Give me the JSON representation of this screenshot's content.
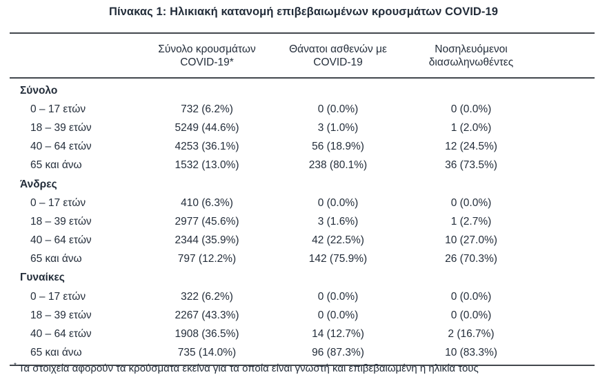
{
  "title": "Πίνακας 1: Ηλικιακή κατανομή επιβεβαιωμένων κρουσμάτων COVID-19",
  "colors": {
    "text": "#232d3a",
    "rule": "#41464c",
    "background": "#ffffff"
  },
  "table": {
    "columns": [
      {
        "line1": "Σύνολο κρουσμάτων",
        "line2": "COVID-19*"
      },
      {
        "line1": "Θάνατοι ασθενών με",
        "line2": "COVID-19"
      },
      {
        "line1": "Νοσηλευόμενοι",
        "line2": "διασωληνωθέντες"
      }
    ],
    "sections": [
      {
        "label": "Σύνολο",
        "rows": [
          {
            "label": "0 – 17 ετών",
            "cases": "732 (6.2%)",
            "deaths": "0 (0.0%)",
            "intubated": "0 (0.0%)"
          },
          {
            "label": "18 – 39 ετών",
            "cases": "5249 (44.6%)",
            "deaths": "3 (1.0%)",
            "intubated": "1 (2.0%)"
          },
          {
            "label": "40 – 64 ετών",
            "cases": "4253 (36.1%)",
            "deaths": "56 (18.9%)",
            "intubated": "12 (24.5%)"
          },
          {
            "label": "65 και άνω",
            "cases": "1532 (13.0%)",
            "deaths": "238 (80.1%)",
            "intubated": "36 (73.5%)"
          }
        ]
      },
      {
        "label": "Άνδρες",
        "rows": [
          {
            "label": "0 – 17 ετών",
            "cases": "410 (6.3%)",
            "deaths": "0 (0.0%)",
            "intubated": "0 (0.0%)"
          },
          {
            "label": "18 – 39 ετών",
            "cases": "2977 (45.6%)",
            "deaths": "3 (1.6%)",
            "intubated": "1 (2.7%)"
          },
          {
            "label": "40 – 64 ετών",
            "cases": "2344 (35.9%)",
            "deaths": "42 (22.5%)",
            "intubated": "10 (27.0%)"
          },
          {
            "label": "65 και άνω",
            "cases": "797 (12.2%)",
            "deaths": "142 (75.9%)",
            "intubated": "26 (70.3%)"
          }
        ]
      },
      {
        "label": "Γυναίκες",
        "rows": [
          {
            "label": "0 – 17 ετών",
            "cases": "322 (6.2%)",
            "deaths": "0 (0.0%)",
            "intubated": "0 (0.0%)"
          },
          {
            "label": "18 – 39 ετών",
            "cases": "2267 (43.3%)",
            "deaths": "0 (0.0%)",
            "intubated": "0 (0.0%)"
          },
          {
            "label": "40 – 64 ετών",
            "cases": "1908 (36.5%)",
            "deaths": "14 (12.7%)",
            "intubated": "2 (16.7%)"
          },
          {
            "label": "65 και άνω",
            "cases": "735 (14.0%)",
            "deaths": "96 (87.3%)",
            "intubated": "10 (83.3%)"
          }
        ]
      }
    ]
  },
  "footnote": {
    "marker": "*",
    "text": "Τα στοιχεία αφορούν τα κρούσματα εκείνα για τα οποία είναι γνωστή και επιβεβαιωμένη η ηλικία τους"
  }
}
